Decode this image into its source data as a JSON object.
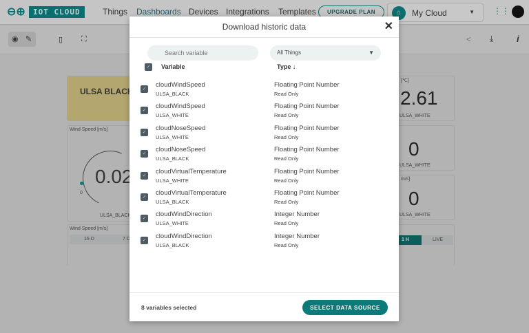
{
  "topbar": {
    "logo": "IOT CLOUD",
    "nav": [
      "Things",
      "Dashboards",
      "Devices",
      "Integrations",
      "Templates"
    ],
    "active_nav": "Dashboards",
    "upgrade": "UPGRADE PLAN",
    "space": "My Cloud",
    "accent": "#0b6f6f"
  },
  "background": {
    "thing_title": "ULSA BLACK",
    "gauge_label": "Wind Speed [m/s]",
    "gauge_value": "0.02",
    "gauge_min": "0",
    "gauge_thing": "ULSA_BLACK",
    "chart_label": "Wind Speed [m/s]",
    "range_tabs": [
      "15 D",
      "7 D"
    ],
    "right_tabs": [
      "1 H",
      "LIVE"
    ],
    "temp_unit": "[℃]",
    "temp_value": "2.61",
    "w1_value": "0",
    "w2_unit": "m/s]",
    "w2_value": "0",
    "white": "ULSA_WHITE"
  },
  "modal": {
    "title": "Download historic data",
    "search_placeholder": "Search variable",
    "things_select": "All Things",
    "col_variable": "Variable",
    "col_type": "Type",
    "selected_count": "8 variables selected",
    "submit": "SELECT DATA SOURCE",
    "rows": [
      {
        "name": "cloudWindSpeed",
        "thing": "ULSA_BLACK",
        "type": "Floating Point Number",
        "access": "Read Only"
      },
      {
        "name": "cloudWindSpeed",
        "thing": "ULSA_WHITE",
        "type": "Floating Point Number",
        "access": "Read Only"
      },
      {
        "name": "cloudNoseSpeed",
        "thing": "ULSA_WHITE",
        "type": "Floating Point Number",
        "access": "Read Only"
      },
      {
        "name": "cloudNoseSpeed",
        "thing": "ULSA_BLACK",
        "type": "Floating Point Number",
        "access": "Read Only"
      },
      {
        "name": "cloudVirtualTemperature",
        "thing": "ULSA_WHITE",
        "type": "Floating Point Number",
        "access": "Read Only"
      },
      {
        "name": "cloudVirtualTemperature",
        "thing": "ULSA_BLACK",
        "type": "Floating Point Number",
        "access": "Read Only"
      },
      {
        "name": "cloudWindDirection",
        "thing": "ULSA_WHITE",
        "type": "Integer Number",
        "access": "Read Only"
      },
      {
        "name": "cloudWindDirection",
        "thing": "ULSA_BLACK",
        "type": "Integer Number",
        "access": "Read Only"
      }
    ]
  }
}
